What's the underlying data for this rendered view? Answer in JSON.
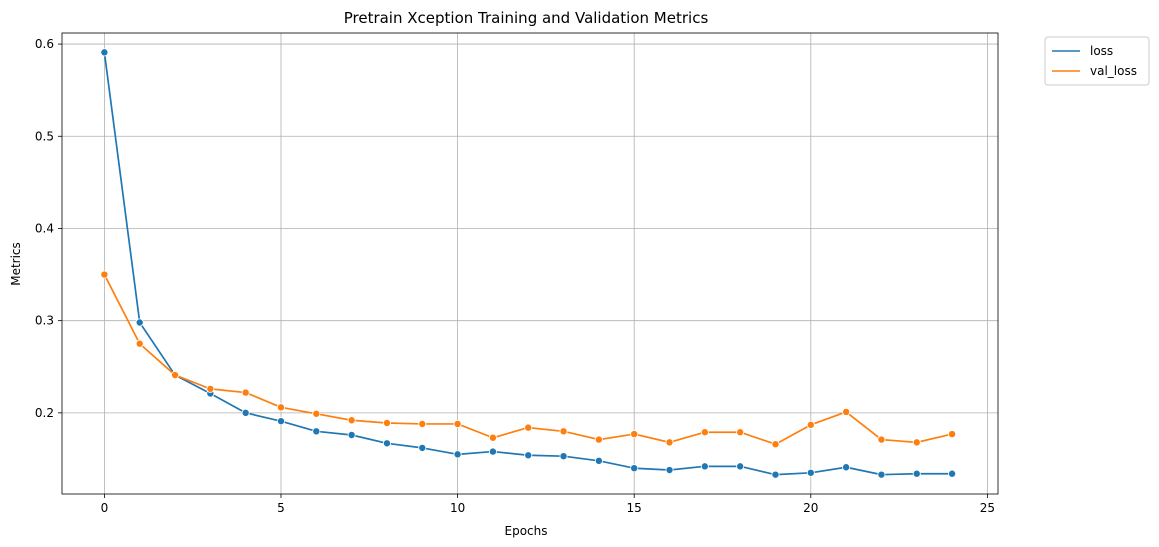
{
  "chart_data": {
    "type": "line",
    "title": "Pretrain Xception Training and Validation Metrics",
    "xlabel": "Epochs",
    "ylabel": "Metrics",
    "xlim": [
      -1.2,
      25.3
    ],
    "ylim": [
      0.112,
      0.612
    ],
    "xticks": [
      0,
      5,
      10,
      15,
      20,
      25
    ],
    "yticks": [
      0.2,
      0.3,
      0.4,
      0.5,
      0.6
    ],
    "grid": true,
    "legend_position": "outside-top-right",
    "x": [
      0,
      1,
      2,
      3,
      4,
      5,
      6,
      7,
      8,
      9,
      10,
      11,
      12,
      13,
      14,
      15,
      16,
      17,
      18,
      19,
      20,
      21,
      22,
      23,
      24
    ],
    "series": [
      {
        "name": "loss",
        "color": "#1f77b4",
        "values": [
          0.591,
          0.298,
          0.241,
          0.221,
          0.2,
          0.191,
          0.18,
          0.176,
          0.167,
          0.162,
          0.155,
          0.158,
          0.154,
          0.153,
          0.148,
          0.14,
          0.138,
          0.142,
          0.142,
          0.133,
          0.135,
          0.141,
          0.133,
          0.134,
          0.134
        ]
      },
      {
        "name": "val_loss",
        "color": "#ff7f0e",
        "values": [
          0.35,
          0.275,
          0.241,
          0.226,
          0.222,
          0.206,
          0.199,
          0.192,
          0.189,
          0.188,
          0.188,
          0.173,
          0.184,
          0.18,
          0.171,
          0.177,
          0.168,
          0.179,
          0.179,
          0.166,
          0.187,
          0.201,
          0.171,
          0.168,
          0.177
        ]
      }
    ]
  }
}
